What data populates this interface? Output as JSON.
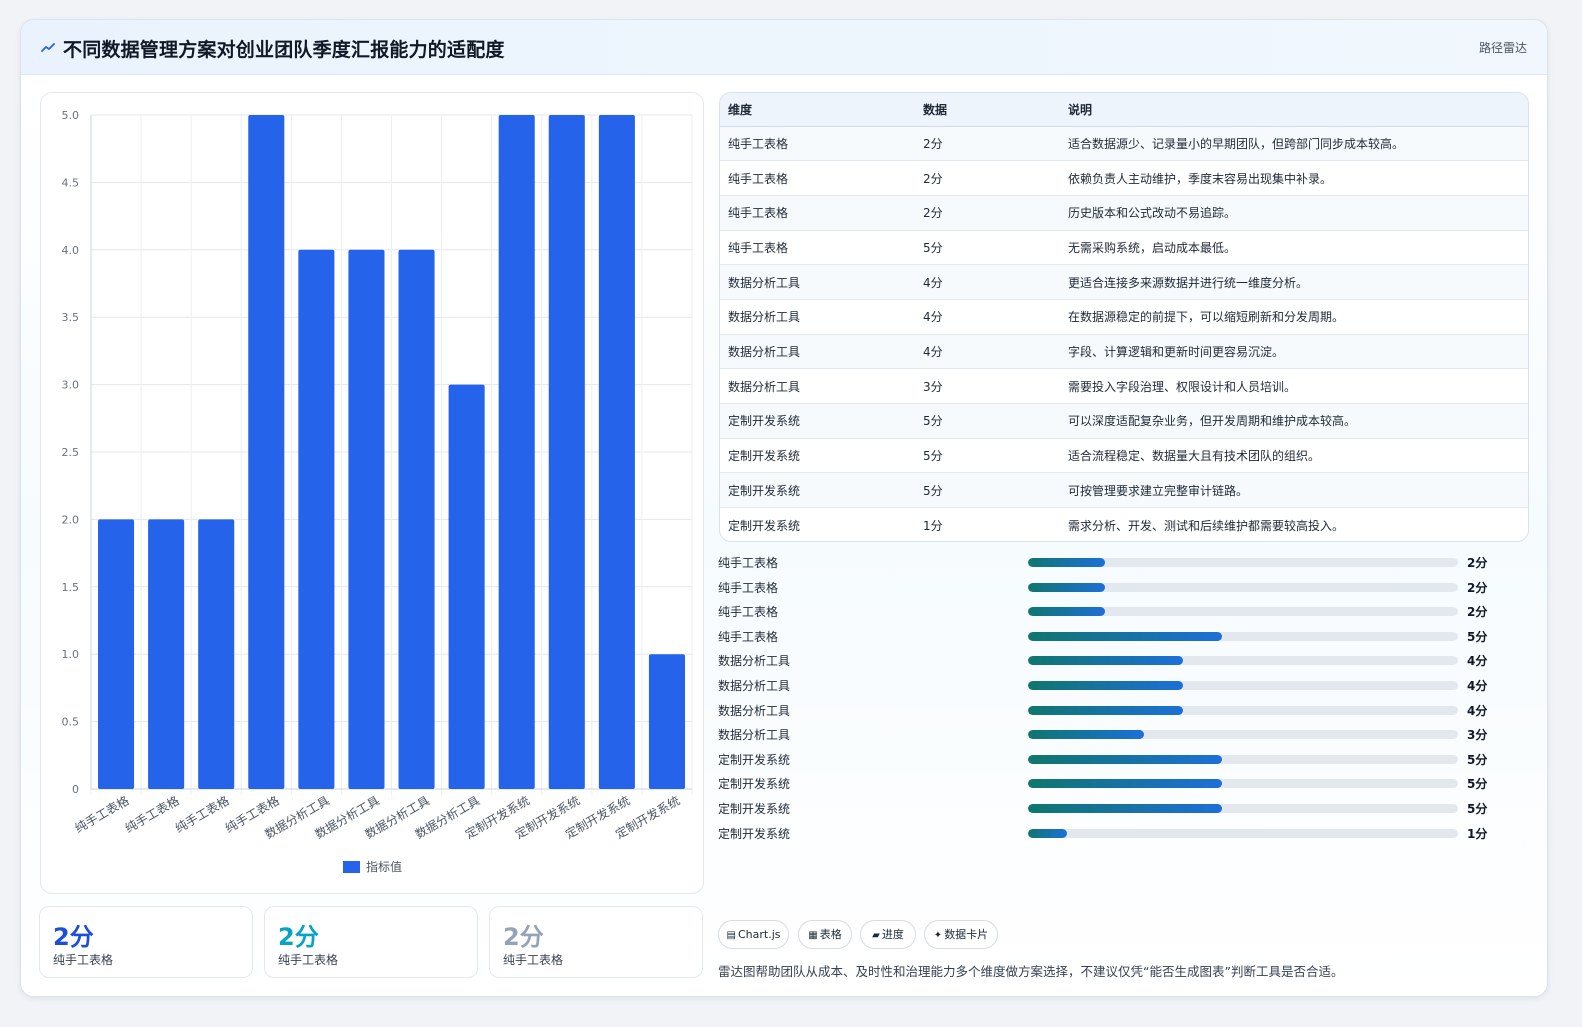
{
  "header": {
    "icon": "sparkline-icon",
    "title": "不同数据管理方案对创业团队季度汇报能力的适配度",
    "right_label": "路径雷达"
  },
  "chart_data": {
    "type": "bar",
    "categories": [
      "纯手工表格",
      "纯手工表格",
      "纯手工表格",
      "纯手工表格",
      "数据分析工具",
      "数据分析工具",
      "数据分析工具",
      "数据分析工具",
      "定制开发系统",
      "定制开发系统",
      "定制开发系统",
      "定制开发系统"
    ],
    "series": [
      {
        "name": "指标值",
        "values": [
          2,
          2,
          2,
          5,
          4,
          4,
          4,
          3,
          5,
          5,
          5,
          1
        ],
        "color": "#2563eb"
      }
    ],
    "ylim": [
      0,
      5
    ],
    "yticks": [
      "0",
      "0.5",
      "1.0",
      "1.5",
      "2.0",
      "2.5",
      "3.0",
      "3.5",
      "4.0",
      "4.5",
      "5.0"
    ],
    "grid": true,
    "legend": "bottom",
    "title": "",
    "xlabel": "",
    "ylabel": ""
  },
  "table": {
    "headers": [
      "维度",
      "数据",
      "说明"
    ],
    "rows": [
      {
        "dim": "纯手工表格",
        "val": "2分",
        "desc": "适合数据源少、记录量小的早期团队，但跨部门同步成本较高。"
      },
      {
        "dim": "纯手工表格",
        "val": "2分",
        "desc": "依赖负责人主动维护，季度末容易出现集中补录。"
      },
      {
        "dim": "纯手工表格",
        "val": "2分",
        "desc": "历史版本和公式改动不易追踪。"
      },
      {
        "dim": "纯手工表格",
        "val": "5分",
        "desc": "无需采购系统，启动成本最低。"
      },
      {
        "dim": "数据分析工具",
        "val": "4分",
        "desc": "更适合连接多来源数据并进行统一维度分析。"
      },
      {
        "dim": "数据分析工具",
        "val": "4分",
        "desc": "在数据源稳定的前提下，可以缩短刷新和分发周期。"
      },
      {
        "dim": "数据分析工具",
        "val": "4分",
        "desc": "字段、计算逻辑和更新时间更容易沉淀。"
      },
      {
        "dim": "数据分析工具",
        "val": "3分",
        "desc": "需要投入字段治理、权限设计和人员培训。"
      },
      {
        "dim": "定制开发系统",
        "val": "5分",
        "desc": "可以深度适配复杂业务，但开发周期和维护成本较高。"
      },
      {
        "dim": "定制开发系统",
        "val": "5分",
        "desc": "适合流程稳定、数据量大且有技术团队的组织。"
      },
      {
        "dim": "定制开发系统",
        "val": "5分",
        "desc": "可按管理要求建立完整审计链路。"
      },
      {
        "dim": "定制开发系统",
        "val": "1分",
        "desc": "需求分析、开发、测试和后续维护都需要较高投入。"
      }
    ]
  },
  "progress": [
    {
      "label": "纯手工表格",
      "value": "2分",
      "fraction": 0.18
    },
    {
      "label": "纯手工表格",
      "value": "2分",
      "fraction": 0.18
    },
    {
      "label": "纯手工表格",
      "value": "2分",
      "fraction": 0.18
    },
    {
      "label": "纯手工表格",
      "value": "5分",
      "fraction": 0.45
    },
    {
      "label": "数据分析工具",
      "value": "4分",
      "fraction": 0.36
    },
    {
      "label": "数据分析工具",
      "value": "4分",
      "fraction": 0.36
    },
    {
      "label": "数据分析工具",
      "value": "4分",
      "fraction": 0.36
    },
    {
      "label": "数据分析工具",
      "value": "3分",
      "fraction": 0.27
    },
    {
      "label": "定制开发系统",
      "value": "5分",
      "fraction": 0.45
    },
    {
      "label": "定制开发系统",
      "value": "5分",
      "fraction": 0.45
    },
    {
      "label": "定制开发系统",
      "value": "5分",
      "fraction": 0.45
    },
    {
      "label": "定制开发系统",
      "value": "1分",
      "fraction": 0.09
    }
  ],
  "kpis": [
    {
      "value": "2分",
      "label": "纯手工表格",
      "color": "#1d4ed8"
    },
    {
      "value": "2分",
      "label": "纯手工表格",
      "color": "#06a3c4"
    },
    {
      "value": "2分",
      "label": "纯手工表格",
      "color": "#94a3b8"
    }
  ],
  "tags": [
    {
      "icon": "chart-icon",
      "glyph": "▤",
      "label": "Chart.js"
    },
    {
      "icon": "table-icon",
      "glyph": "▦",
      "label": "表格"
    },
    {
      "icon": "progress-icon",
      "glyph": "▰",
      "label": "进度"
    },
    {
      "icon": "sparkle-icon",
      "glyph": "✦",
      "label": "数据卡片"
    }
  ],
  "footnote": "雷达图帮助团队从成本、及时性和治理能力多个维度做方案选择，不建议仅凭“能否生成图表”判断工具是否合适。"
}
